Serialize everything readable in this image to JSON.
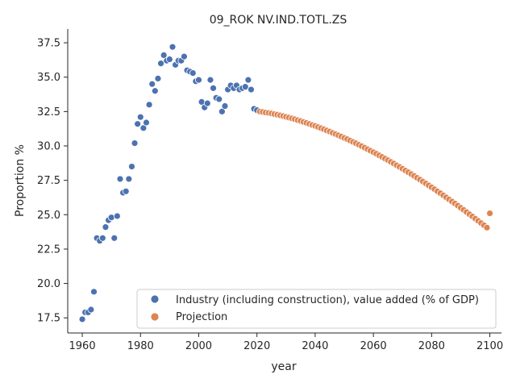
{
  "chart_data": {
    "type": "scatter",
    "title": "09_ROK NV.IND.TOTL.ZS",
    "xlabel": "year",
    "ylabel": "Proportion %",
    "xlim": [
      1955,
      2104
    ],
    "ylim": [
      16.4,
      38.5
    ],
    "xticks": [
      1960,
      1980,
      2000,
      2020,
      2040,
      2060,
      2080,
      2100
    ],
    "yticks": [
      17.5,
      20.0,
      22.5,
      25.0,
      27.5,
      30.0,
      32.5,
      35.0,
      37.5
    ],
    "ytick_labels": [
      "17.5",
      "20.0",
      "22.5",
      "25.0",
      "27.5",
      "30.0",
      "32.5",
      "35.0",
      "37.5"
    ],
    "legend_position": "lower-right",
    "grid": false,
    "series": [
      {
        "name": "Industry (including construction), value added (% of GDP)",
        "color": "#4c72b0",
        "x": [
          1960,
          1961,
          1962,
          1963,
          1964,
          1965,
          1966,
          1967,
          1968,
          1969,
          1970,
          1971,
          1972,
          1973,
          1974,
          1975,
          1976,
          1977,
          1978,
          1979,
          1980,
          1981,
          1982,
          1983,
          1984,
          1985,
          1986,
          1987,
          1988,
          1989,
          1990,
          1991,
          1992,
          1993,
          1994,
          1995,
          1996,
          1997,
          1998,
          1999,
          2000,
          2001,
          2002,
          2003,
          2004,
          2005,
          2006,
          2007,
          2008,
          2009,
          2010,
          2011,
          2012,
          2013,
          2014,
          2015,
          2016,
          2017,
          2018,
          2019,
          2020
        ],
        "y": [
          17.4,
          17.9,
          17.9,
          18.1,
          19.4,
          23.3,
          23.1,
          23.3,
          24.1,
          24.6,
          24.8,
          23.3,
          24.9,
          27.6,
          26.6,
          26.7,
          27.6,
          28.5,
          30.2,
          31.6,
          32.1,
          31.3,
          31.7,
          33.0,
          34.5,
          34.0,
          34.9,
          36.0,
          36.6,
          36.2,
          36.3,
          37.2,
          35.9,
          36.2,
          36.2,
          36.5,
          35.5,
          35.4,
          35.3,
          34.7,
          34.8,
          33.2,
          32.8,
          33.1,
          34.8,
          34.2,
          33.5,
          33.4,
          32.5,
          32.9,
          34.1,
          34.4,
          34.2,
          34.4,
          34.1,
          34.2,
          34.3,
          34.8,
          34.1,
          32.7,
          32.6
        ]
      },
      {
        "name": "Projection",
        "color": "#dd8452",
        "x": [
          2021,
          2022,
          2023,
          2024,
          2025,
          2026,
          2027,
          2028,
          2029,
          2030,
          2031,
          2032,
          2033,
          2034,
          2035,
          2036,
          2037,
          2038,
          2039,
          2040,
          2041,
          2042,
          2043,
          2044,
          2045,
          2046,
          2047,
          2048,
          2049,
          2050,
          2051,
          2052,
          2053,
          2054,
          2055,
          2056,
          2057,
          2058,
          2059,
          2060,
          2061,
          2062,
          2063,
          2064,
          2065,
          2066,
          2067,
          2068,
          2069,
          2070,
          2071,
          2072,
          2073,
          2074,
          2075,
          2076,
          2077,
          2078,
          2079,
          2080,
          2081,
          2082,
          2083,
          2084,
          2085,
          2086,
          2087,
          2088,
          2089,
          2090,
          2091,
          2092,
          2093,
          2094,
          2095,
          2096,
          2097,
          2098,
          2099,
          2100
        ],
        "y": [
          32.5,
          32.47,
          32.43,
          32.4,
          32.36,
          32.31,
          32.27,
          32.22,
          32.17,
          32.11,
          32.06,
          32.0,
          31.94,
          31.87,
          31.81,
          31.74,
          31.67,
          31.6,
          31.52,
          31.45,
          31.37,
          31.29,
          31.21,
          31.12,
          31.04,
          30.95,
          30.86,
          30.77,
          30.68,
          30.58,
          30.49,
          30.39,
          30.29,
          30.19,
          30.08,
          29.98,
          29.87,
          29.76,
          29.65,
          29.54,
          29.43,
          29.31,
          29.2,
          29.08,
          28.96,
          28.84,
          28.72,
          28.59,
          28.47,
          28.34,
          28.21,
          28.08,
          27.95,
          27.82,
          27.68,
          27.55,
          27.41,
          27.27,
          27.13,
          26.99,
          26.85,
          26.7,
          26.56,
          26.41,
          26.26,
          26.11,
          25.96,
          25.81,
          25.66,
          25.5,
          25.35,
          25.19,
          25.03,
          24.87,
          24.71,
          24.55,
          24.39,
          24.23,
          24.06,
          25.1
        ]
      }
    ]
  }
}
